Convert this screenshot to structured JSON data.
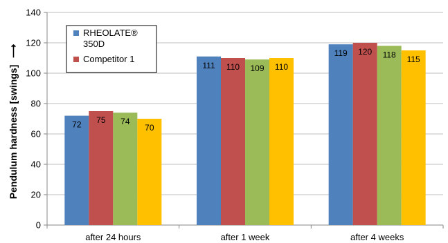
{
  "chart_data": {
    "type": "bar",
    "title": "",
    "xlabel": "",
    "ylabel": "Pendulum hardness [swings]",
    "ylabel_arrow": "⟶",
    "ylim": [
      0,
      140
    ],
    "y_ticks": [
      "0",
      "20",
      "40",
      "60",
      "80",
      "100",
      "120",
      "140"
    ],
    "categories": [
      "after 24 hours",
      "after 1 week",
      "after 4 weeks"
    ],
    "grid": true,
    "legend_position": "top-left",
    "series": [
      {
        "name": "RHEOLATE® 350D",
        "color": "#4f81bd",
        "values": [
          72,
          111,
          119
        ]
      },
      {
        "name": "Competitor 1",
        "color": "#c0504d",
        "values": [
          75,
          110,
          120
        ]
      },
      {
        "name": "",
        "color": "#9bbb59",
        "values": [
          74,
          109,
          118
        ]
      },
      {
        "name": "",
        "color": "#ffc000",
        "values": [
          70,
          110,
          115
        ]
      }
    ],
    "legend_entries": [
      {
        "lines": [
          "RHEOLATE®",
          "350D"
        ],
        "color": "#4f81bd"
      },
      {
        "lines": [
          "Competitor 1"
        ],
        "color": "#c0504d"
      }
    ]
  }
}
